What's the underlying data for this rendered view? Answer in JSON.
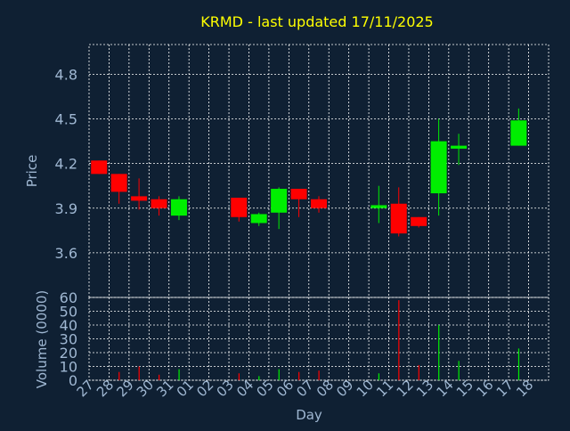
{
  "chart_data": {
    "type": "candlestick",
    "title": "KRMD - last updated 17/11/2025",
    "xlabel": "Day",
    "colors": {
      "background": "#0f2033",
      "title": "#ffff00",
      "axis_label": "#9fb7d2",
      "tick_label": "#9fb7d2",
      "grid": "#ffffff",
      "up": "#00ee00",
      "down": "#ff0000"
    },
    "x_tick_labels": [
      "27",
      "28",
      "29",
      "30",
      "31",
      "01",
      "02",
      "03",
      "04",
      "05",
      "06",
      "07",
      "08",
      "09",
      "10",
      "11",
      "12",
      "13",
      "14",
      "15",
      "16",
      "17",
      "18"
    ],
    "price_panel": {
      "ylabel": "Price",
      "ylim": [
        3.3,
        5.0
      ],
      "yticks": [
        3.6,
        3.9,
        4.2,
        4.5,
        4.8
      ],
      "ytick_labels": [
        "3.6",
        "3.9",
        "4.2",
        "4.5",
        "4.8"
      ],
      "grid": true
    },
    "volume_panel": {
      "ylabel": "Volume (0000)",
      "ylim": [
        0,
        60
      ],
      "yticks": [
        0,
        10,
        20,
        30,
        40,
        50,
        60
      ],
      "ytick_labels": [
        "0",
        "10",
        "20",
        "30",
        "40",
        "50",
        "60"
      ],
      "grid": true
    },
    "candles": [
      {
        "day": "27",
        "open": 4.22,
        "high": 4.22,
        "low": 4.13,
        "close": 4.13,
        "volume": 0
      },
      {
        "day": "28",
        "open": 4.13,
        "high": 4.13,
        "low": 3.93,
        "close": 4.01,
        "volume": 6
      },
      {
        "day": "29",
        "open": 3.98,
        "high": 4.1,
        "low": 3.89,
        "close": 3.95,
        "volume": 10
      },
      {
        "day": "30",
        "open": 3.96,
        "high": 3.98,
        "low": 3.85,
        "close": 3.9,
        "volume": 4
      },
      {
        "day": "31",
        "open": 3.85,
        "high": 3.98,
        "low": 3.82,
        "close": 3.96,
        "volume": 8
      },
      {
        "day": "03",
        "open": 3.97,
        "high": 3.97,
        "low": 3.81,
        "close": 3.84,
        "volume": 5
      },
      {
        "day": "04",
        "open": 3.8,
        "high": 3.87,
        "low": 3.78,
        "close": 3.86,
        "volume": 3
      },
      {
        "day": "05",
        "open": 3.87,
        "high": 4.04,
        "low": 3.76,
        "close": 4.03,
        "volume": 8
      },
      {
        "day": "06",
        "open": 4.03,
        "high": 4.03,
        "low": 3.84,
        "close": 3.96,
        "volume": 6
      },
      {
        "day": "07",
        "open": 3.96,
        "high": 3.98,
        "low": 3.87,
        "close": 3.9,
        "volume": 7
      },
      {
        "day": "10",
        "open": 3.9,
        "high": 4.05,
        "low": 3.8,
        "close": 3.92,
        "volume": 5
      },
      {
        "day": "11",
        "open": 3.93,
        "high": 4.04,
        "low": 3.71,
        "close": 3.73,
        "volume": 58
      },
      {
        "day": "12",
        "open": 3.84,
        "high": 3.84,
        "low": 3.77,
        "close": 3.78,
        "volume": 11
      },
      {
        "day": "13",
        "open": 4.0,
        "high": 4.5,
        "low": 3.85,
        "close": 4.35,
        "volume": 40
      },
      {
        "day": "14",
        "open": 4.3,
        "high": 4.4,
        "low": 4.19,
        "close": 4.32,
        "volume": 14
      },
      {
        "day": "17",
        "open": 4.32,
        "high": 4.57,
        "low": 4.32,
        "close": 4.49,
        "volume": 23
      }
    ]
  }
}
